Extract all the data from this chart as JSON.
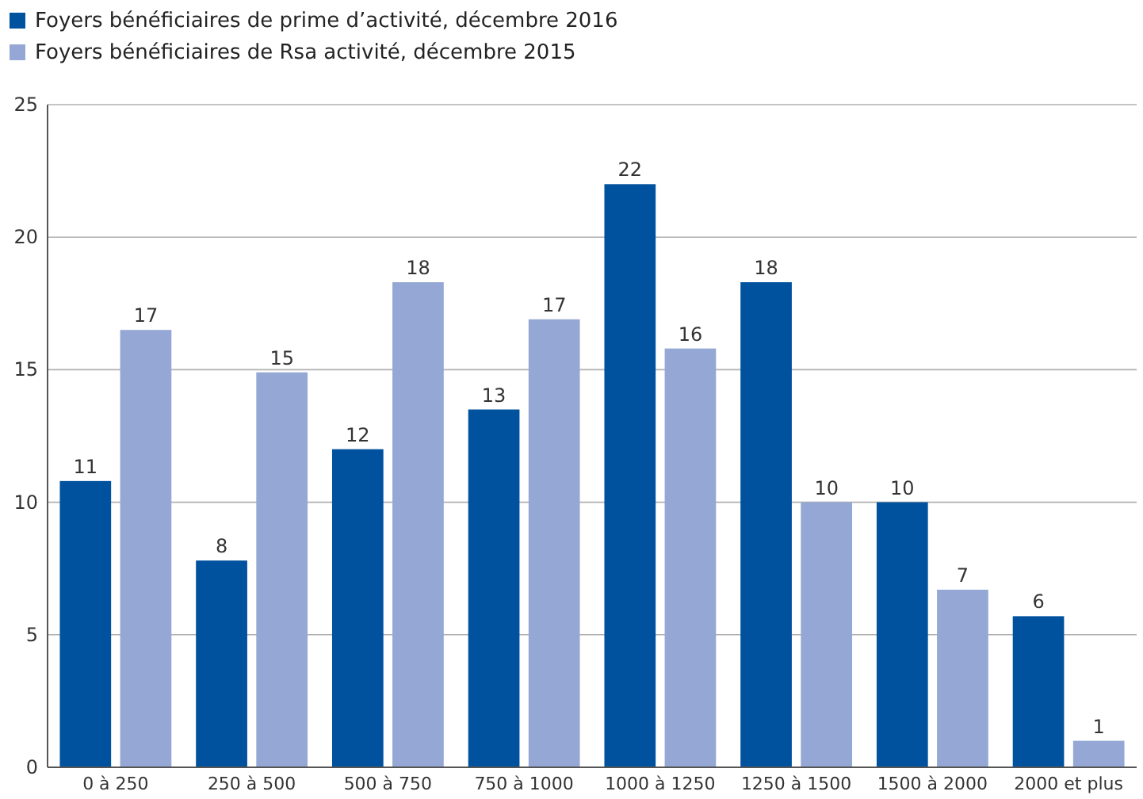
{
  "chart_data": {
    "type": "bar",
    "categories": [
      "0 à 250",
      "250 à 500",
      "500 à 750",
      "750 à 1000",
      "1000 à 1250",
      "1250 à 1500",
      "1500 à 2000",
      "2000 et plus"
    ],
    "series": [
      {
        "name": "Foyers bénéficiaires de prime d’activité, décembre 2016",
        "color": "#00519e",
        "values": [
          10.8,
          7.8,
          12.0,
          13.5,
          22.0,
          18.3,
          10.0,
          5.7
        ],
        "value_labels": [
          "11",
          "8",
          "12",
          "13",
          "22",
          "18",
          "10",
          "6"
        ]
      },
      {
        "name": "Foyers bénéficiaires de Rsa activité, décembre 2015",
        "color": "#95a7d5",
        "values": [
          16.5,
          14.9,
          18.3,
          16.9,
          15.8,
          10.0,
          6.7,
          1.0
        ],
        "value_labels": [
          "17",
          "15",
          "18",
          "17",
          "16",
          "10",
          "7",
          "1"
        ]
      }
    ],
    "ylim": [
      0,
      25
    ],
    "yticks": [
      0,
      5,
      10,
      15,
      20,
      25
    ],
    "grid": "y",
    "legend": "top left"
  }
}
